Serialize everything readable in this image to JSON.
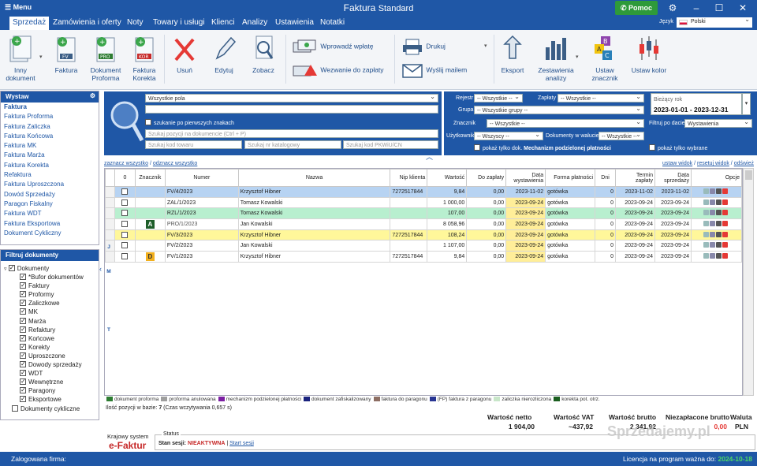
{
  "title_bar": {
    "menu": "Menu",
    "title": "Faktura",
    "title_sub": "Standard",
    "help": "Pomoc"
  },
  "menu": {
    "items": [
      "Sprzedaż",
      "Zamówienia i oferty",
      "Noty",
      "Towary i usługi",
      "Klienci",
      "Analizy",
      "Ustawienia",
      "Notatki"
    ],
    "active": "Sprzedaż",
    "lang_label": "Język",
    "lang_value": "Polski"
  },
  "toolbar": {
    "inny": "Inny dokument",
    "faktura": "Faktura",
    "proforma": "Dokument Proforma",
    "korekta": "Faktura Korekta",
    "usun": "Usuń",
    "edytuj": "Edytuj",
    "zobacz": "Zobacz",
    "wprowadz": "Wprowadź wpłatę",
    "wezwanie": "Wezwanie do zapłaty",
    "drukuj": "Drukuj",
    "wyslij": "Wyślij mailem",
    "eksport": "Eksport",
    "zestawienia": "Zestawienia analizy",
    "ustaw_znacznik": "Ustaw znacznik",
    "ustaw_kolor": "Ustaw kolor",
    "icons": {
      "inny": "documents-icon",
      "faktura": "invoice-fv-icon",
      "proforma": "invoice-pro-icon",
      "korekta": "invoice-kor-icon",
      "usun": "delete-x-icon",
      "edytuj": "pencil-icon",
      "zobacz": "magnifier-icon",
      "wprowadz": "money-payment-icon",
      "wezwanie": "money-alert-icon",
      "drukuj": "printer-icon",
      "wyslij": "envelope-icon",
      "eksport": "export-arrow-icon",
      "zestawienia": "bar-chart-icon",
      "ustaw_znacznik": "marker-abc-icon",
      "ustaw_kolor": "candle-chart-icon"
    }
  },
  "wystaw": {
    "header": "Wystaw",
    "items": [
      "Faktura",
      "Faktura Proforma",
      "Faktura Zaliczka",
      "Faktura Końcowa",
      "Faktura MK",
      "Faktura Marża",
      "Faktura Korekta",
      "Refaktura",
      "Faktura Uproszczona",
      "Dowód Sprzedaży",
      "Paragon Fiskalny",
      "Faktura WDT",
      "Faktura Eksportowa",
      "Dokument Cykliczny"
    ]
  },
  "filtruj": {
    "header": "Filtruj dokumenty",
    "root": "Dokumenty",
    "children": [
      "*Bufor dokumentów",
      "Faktury",
      "Proformy",
      "Zaliczkowe",
      "MK",
      "Marża",
      "Refaktury",
      "Końcowe",
      "Korekty",
      "Uproszczone",
      "Dowody sprzedaży",
      "WDT",
      "Wewnętrzne",
      "Paragony",
      "Eksportowe"
    ],
    "cykliczne": "Dokumenty cykliczne"
  },
  "search": {
    "field_select": "Wszystkie pola",
    "first_chars": "szukanie po pierwszych znakach",
    "ph_position": "Szukaj pozycji na dokumencie (Ctrl + P)",
    "ph_code": "Szukaj kod towaru",
    "ph_catalog": "Szukaj nr katalogowy",
    "ph_pkwiu": "Szukaj kod PKWiU/CN"
  },
  "filters": {
    "rejestr_label": "Rejestr",
    "rejestr": "-- Wszystkie --",
    "zaplaty_label": "Zapłaty",
    "zaplaty": "-- Wszystkie --",
    "grupa_label": "Grupa",
    "grupa": "-- Wszystkie grupy --",
    "znacznik_label": "Znacznik",
    "znacznik": "-- Wszystkie --",
    "uzytkownik_label": "Użytkownik",
    "uzytkownik": "-- Wszyscy --",
    "waluta_label": "Dokumenty w walucie",
    "waluta": "-- Wszystkie --",
    "mpp": "pokaż tylko dok.",
    "mpp_bold": "Mechanizm podzielonej płatności"
  },
  "period": {
    "label": "Bieżący rok",
    "range": "2023-01-01 - 2023-12-31",
    "filter_label": "Filtruj po dacie",
    "filter_value": "Wystawienia",
    "selected": "pokaż tylko wybrane"
  },
  "links": {
    "left": [
      "zaznacz wszystko",
      "odznacz wszystko"
    ],
    "right": [
      "ustaw widok",
      "resetuj widok",
      "odśwież"
    ]
  },
  "table": {
    "headers": [
      "0",
      "Znacznik",
      "Numer",
      "Nazwa",
      "Nip klienta",
      "Wartość",
      "Do zapłaty",
      "Data wystawienia",
      "Forma płatności",
      "Dni",
      "Termin zapłaty",
      "Data sprzedaży",
      "Opcje"
    ],
    "rows": [
      {
        "znacznik": "",
        "numer": "FV/4/2023",
        "nazwa": "Krzysztof Hibner",
        "nip": "7272517844",
        "wartosc": "9,84",
        "do_zaplaty": "0,00",
        "data_wyst": "2023-11-02",
        "forma": "gotówka",
        "dni": "0",
        "termin": "2023-11-02",
        "data_sprz": "2023-11-02",
        "bg": "#b7d3f2"
      },
      {
        "znacznik": "",
        "numer": "ZAL/1/2023",
        "nazwa": "Tomasz Kowalski",
        "nip": "",
        "wartosc": "1 000,00",
        "do_zaplaty": "0,00",
        "data_wyst": "2023-09-24",
        "forma": "gotówka",
        "dni": "0",
        "termin": "2023-09-24",
        "data_sprz": "2023-09-24",
        "bg": "#ffffff"
      },
      {
        "znacznik": "",
        "numer": "RZL/1/2023",
        "nazwa": "Tomasz Kowalski",
        "nip": "",
        "wartosc": "107,00",
        "do_zaplaty": "0,00",
        "data_wyst": "2023-09-24",
        "forma": "gotówka",
        "dni": "0",
        "termin": "2023-09-24",
        "data_sprz": "2023-09-24",
        "bg": "#b8efcf"
      },
      {
        "znacznik": "A",
        "numer": "PRO/1/2023",
        "nazwa": "Jan Kowalski",
        "nip": "",
        "wartosc": "8 058,96",
        "do_zaplaty": "0,00",
        "data_wyst": "2023-09-24",
        "forma": "gotówka",
        "dni": "0",
        "termin": "2023-09-24",
        "data_sprz": "2023-09-24",
        "bg": "#ffffff"
      },
      {
        "znacznik": "",
        "numer": "FV/3/2023",
        "nazwa": "Krzysztof Hibner",
        "nip": "7272517844",
        "wartosc": "108,24",
        "do_zaplaty": "0,00",
        "data_wyst": "2023-09-24",
        "forma": "gotówka",
        "dni": "0",
        "termin": "2023-09-24",
        "data_sprz": "2023-09-24",
        "bg": "#fff79a"
      },
      {
        "znacznik": "",
        "numer": "FV/2/2023",
        "nazwa": "Jan Kowalski",
        "nip": "",
        "wartosc": "1 107,00",
        "do_zaplaty": "0,00",
        "data_wyst": "2023-09-24",
        "forma": "gotówka",
        "dni": "0",
        "termin": "2023-09-24",
        "data_sprz": "2023-09-24",
        "bg": "#ffffff"
      },
      {
        "znacznik": "D",
        "numer": "FV/1/2023",
        "nazwa": "Krzysztof Hibner",
        "nip": "7272517844",
        "wartosc": "9,84",
        "do_zaplaty": "0,00",
        "data_wyst": "2023-09-24",
        "forma": "gotówka",
        "dni": "0",
        "termin": "2023-09-24",
        "data_sprz": "2023-09-24",
        "bg": "#ffffff"
      }
    ]
  },
  "alphabet": [
    "J",
    "M",
    "T"
  ],
  "legend": [
    {
      "label": "dokument proforma",
      "color": "#2e7d32"
    },
    {
      "label": "proforma anulowana",
      "color": "#9e9e9e"
    },
    {
      "label": "mechanizm podzielonej płatności",
      "color": "#7b1fa2"
    },
    {
      "label": "dokument zafiskalizowany",
      "color": "#1a237e"
    },
    {
      "label": "faktura do paragonu",
      "color": "#8d6e63"
    },
    {
      "label": "(FP) faktura z paragonu",
      "color": "#283593"
    },
    {
      "label": "zaliczka nierozliczona",
      "color": "#c8e6c9"
    },
    {
      "label": "korekta pot. otrz.",
      "color": "#1b5e20"
    }
  ],
  "summary": {
    "count_label": "Ilość pozycji w bazie:",
    "count": "7",
    "time": "(Czas wczytywania 0,657 s)",
    "netto_label": "Wartość netto",
    "netto": "1 904,00",
    "vat_label": "Wartość VAT",
    "vat": "~437,92",
    "brutto_label": "Wartość brutto",
    "brutto": "2 341,92",
    "niez_label": "Niezapłacone brutto",
    "niez": "0,00",
    "waluta_label": "Waluta",
    "waluta": "PLN"
  },
  "ksef": {
    "line1": "Krajowy system",
    "logo": "e-Faktur",
    "status_label": "Status",
    "sesja_label": "Stan sesji:",
    "sesja": "NIEAKTYWNA",
    "start": "Start sesji"
  },
  "watermark": "Sprzedajemy.pl",
  "statusbar": {
    "left": "Zalogowana firma:",
    "right": "Licencja na program ważna do:",
    "date": "2024-10-18"
  }
}
